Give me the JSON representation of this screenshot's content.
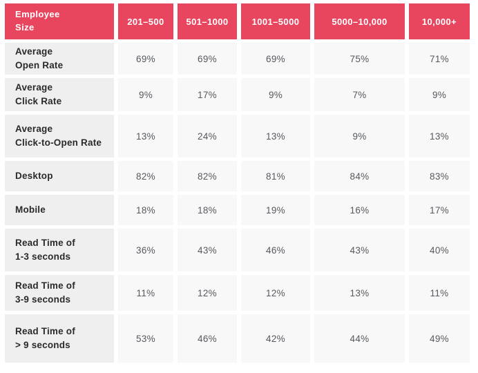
{
  "colors": {
    "header_bg": "#e8465f",
    "header_text": "#ffffff",
    "label_cell_bg": "#efefef",
    "value_cell_bg": "#f8f8f8",
    "label_text": "#2a2a2c",
    "value_text": "#55585e",
    "gutter": "#ffffff"
  },
  "table": {
    "corner_label": "Employee\nSize",
    "columns": [
      "201–500",
      "501–1000",
      "1001–5000",
      "5000–10,000",
      "10,000+"
    ],
    "rows": [
      {
        "label": "Average\nOpen Rate",
        "values": [
          "69%",
          "69%",
          "69%",
          "75%",
          "71%"
        ]
      },
      {
        "label": "Average\nClick Rate",
        "values": [
          "9%",
          "17%",
          "9%",
          "7%",
          "9%"
        ]
      },
      {
        "label": "Average\nClick-to-Open Rate",
        "values": [
          "13%",
          "24%",
          "13%",
          "9%",
          "13%"
        ]
      },
      {
        "label": "Desktop",
        "values": [
          "82%",
          "82%",
          "81%",
          "84%",
          "83%"
        ]
      },
      {
        "label": "Mobile",
        "values": [
          "18%",
          "18%",
          "19%",
          "16%",
          "17%"
        ]
      },
      {
        "label": "Read Time of\n1-3 seconds",
        "values": [
          "36%",
          "43%",
          "46%",
          "43%",
          "40%"
        ]
      },
      {
        "label": "Read Time of\n3-9 seconds",
        "values": [
          "11%",
          "12%",
          "12%",
          "13%",
          "11%"
        ]
      },
      {
        "label": "Read Time of\n> 9 seconds",
        "values": [
          "53%",
          "46%",
          "42%",
          "44%",
          "49%"
        ]
      }
    ]
  },
  "chart_data": {
    "type": "table",
    "columns": [
      "Employee Size",
      "201–500",
      "501–1000",
      "1001–5000",
      "5000–10,000",
      "10,000+"
    ],
    "rows": [
      {
        "metric": "Average Open Rate",
        "values_percent": [
          69,
          69,
          69,
          75,
          71
        ]
      },
      {
        "metric": "Average Click Rate",
        "values_percent": [
          9,
          17,
          9,
          7,
          9
        ]
      },
      {
        "metric": "Average Click-to-Open Rate",
        "values_percent": [
          13,
          24,
          13,
          9,
          13
        ]
      },
      {
        "metric": "Desktop",
        "values_percent": [
          82,
          82,
          81,
          84,
          83
        ]
      },
      {
        "metric": "Mobile",
        "values_percent": [
          18,
          18,
          19,
          16,
          17
        ]
      },
      {
        "metric": "Read Time of 1-3 seconds",
        "values_percent": [
          36,
          43,
          46,
          43,
          40
        ]
      },
      {
        "metric": "Read Time of 3-9 seconds",
        "values_percent": [
          11,
          12,
          12,
          13,
          11
        ]
      },
      {
        "metric": "Read Time of > 9 seconds",
        "values_percent": [
          53,
          46,
          42,
          44,
          49
        ]
      }
    ]
  }
}
